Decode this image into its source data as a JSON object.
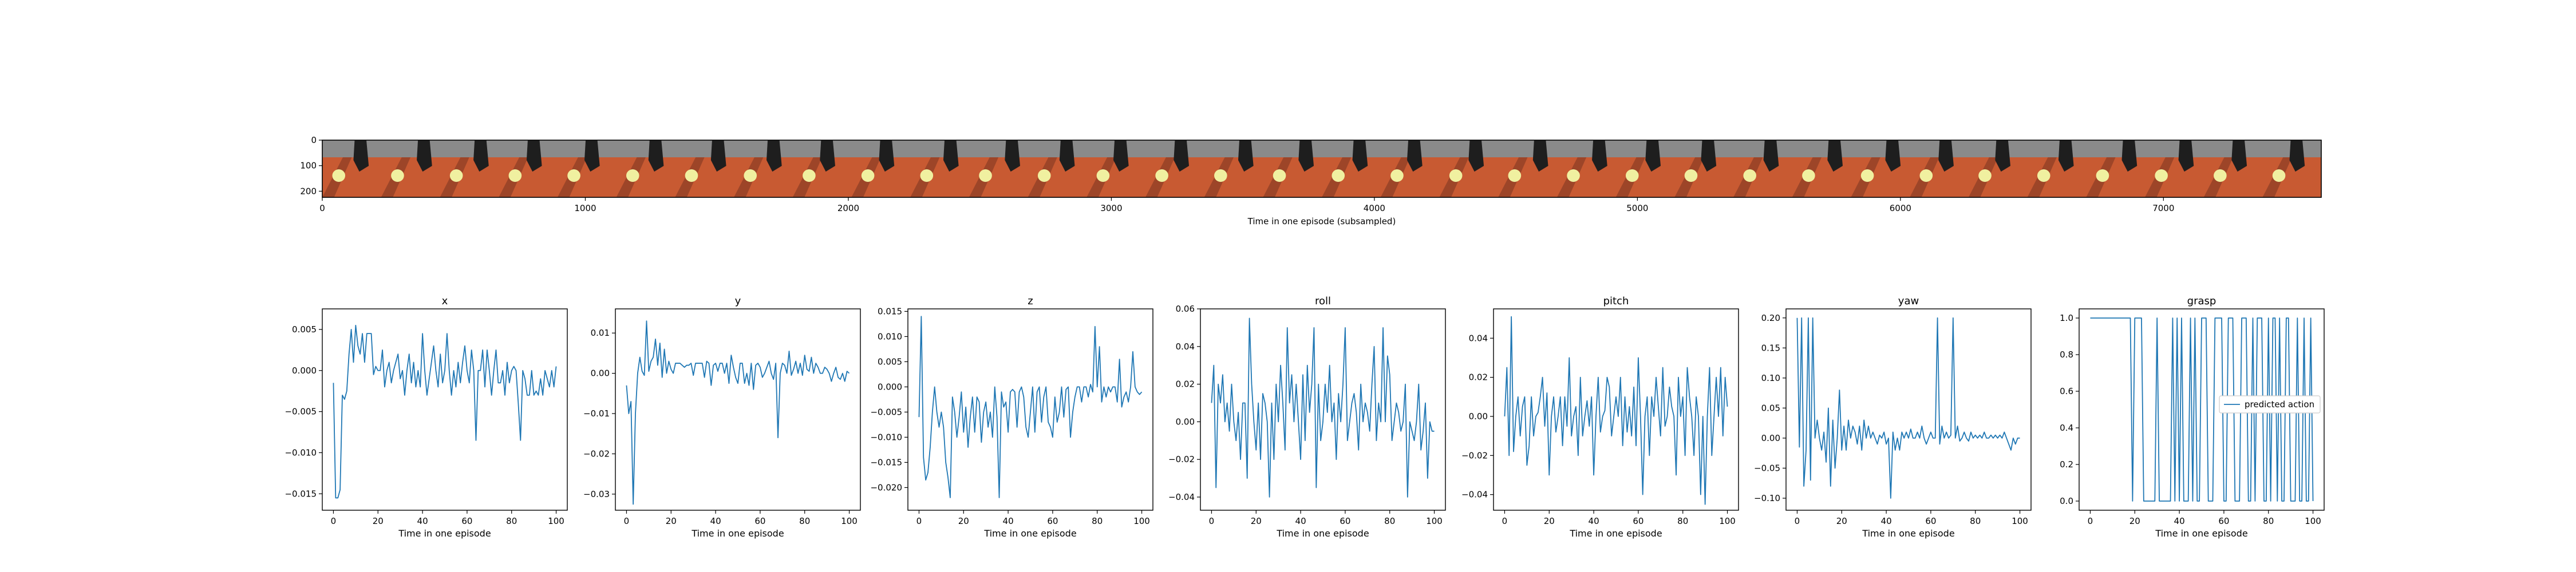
{
  "colors": {
    "series": "#1f77b4",
    "axes": "#000000",
    "background": "#ffffff"
  },
  "filmstrip": {
    "xlabel": "Time in one episode (subsampled)",
    "x_ticks": [
      "0",
      "1000",
      "2000",
      "3000",
      "4000",
      "5000",
      "6000",
      "7000"
    ],
    "x_tick_values": [
      0,
      1000,
      2000,
      3000,
      4000,
      5000,
      6000,
      7000
    ],
    "y_ticks": [
      "0",
      "100",
      "200"
    ],
    "y_tick_values": [
      0,
      100,
      200
    ],
    "xlim": [
      0,
      7600
    ],
    "ylim": [
      0,
      224
    ],
    "frames": 34,
    "frame_colors": {
      "tabletop": "#c85a32",
      "tabletop_dark": "#7a3520",
      "wall": "#8a8a8a",
      "object": "#f0f0a0",
      "gripper": "#1e1e1e"
    }
  },
  "chart_data": [
    {
      "type": "line",
      "title": "x",
      "xlabel": "Time in one episode",
      "xlim": [
        -5,
        105
      ],
      "ylim": [
        -0.017,
        0.0075
      ],
      "x_ticks": [
        "0",
        "20",
        "40",
        "60",
        "80",
        "100"
      ],
      "y_ticks": [
        "−0.015",
        "−0.010",
        "−0.005",
        "0.000",
        "0.005"
      ],
      "y_tick_values": [
        -0.015,
        -0.01,
        -0.005,
        0.0,
        0.005
      ],
      "values": [
        -0.0015,
        -0.0155,
        -0.0155,
        -0.0145,
        -0.003,
        -0.0035,
        -0.0025,
        0.002,
        0.005,
        0.001,
        0.0055,
        0.003,
        0.002,
        0.0045,
        0.001,
        0.0045,
        0.0045,
        0.0045,
        -0.0005,
        0.0005,
        0.0,
        0.0,
        0.0025,
        -0.002,
        0.0,
        0.001,
        -0.0015,
        0.0,
        0.001,
        0.002,
        -0.001,
        0.0,
        -0.003,
        0.0,
        0.002,
        -0.0015,
        0.001,
        -0.002,
        0.0,
        -0.002,
        0.0045,
        0.0,
        -0.003,
        -0.001,
        0.001,
        0.003,
        0.0,
        -0.002,
        0.002,
        -0.0015,
        0.0,
        0.0045,
        0.0,
        -0.003,
        0.0,
        -0.002,
        0.001,
        -0.0015,
        0.001,
        0.003,
        0.0,
        -0.0015,
        0.0025,
        0.0,
        -0.0085,
        0.0,
        0.0,
        0.0025,
        -0.002,
        0.0025,
        0.0,
        -0.003,
        0.0,
        0.0025,
        -0.0015,
        -0.0015,
        0.0,
        -0.003,
        0.001,
        -0.0015,
        0.0,
        0.0005,
        0.0,
        -0.004,
        -0.0085,
        0.0,
        -0.001,
        -0.003,
        -0.003,
        0.0,
        -0.003,
        -0.0025,
        -0.003,
        -0.001,
        -0.003,
        0.0,
        -0.001,
        -0.002,
        0.0,
        -0.002,
        0.0005
      ]
    },
    {
      "type": "line",
      "title": "y",
      "xlabel": "Time in one episode",
      "xlim": [
        -5,
        105
      ],
      "ylim": [
        -0.034,
        0.016
      ],
      "x_ticks": [
        "0",
        "20",
        "40",
        "60",
        "80",
        "100"
      ],
      "y_ticks": [
        "−0.03",
        "−0.02",
        "−0.01",
        "0.00",
        "0.01"
      ],
      "y_tick_values": [
        -0.03,
        -0.02,
        -0.01,
        0.0,
        0.01
      ],
      "values": [
        -0.003,
        -0.01,
        -0.007,
        -0.0325,
        -0.01,
        0.0,
        0.004,
        0.0005,
        -0.0005,
        0.013,
        0.0005,
        0.003,
        0.004,
        0.0085,
        0.002,
        0.0075,
        -0.001,
        0.006,
        0.0,
        0.003,
        0.001,
        0.0,
        0.0025,
        0.0025,
        0.0025,
        0.002,
        0.0015,
        0.002,
        0.002,
        0.0025,
        -0.0005,
        0.0025,
        0.0025,
        0.0025,
        0.0025,
        -0.001,
        0.003,
        0.0025,
        -0.003,
        0.002,
        0.0025,
        0.0005,
        0.0025,
        0.0025,
        0.0,
        0.0025,
        -0.0025,
        0.0045,
        0.0015,
        -0.001,
        -0.0025,
        0.0025,
        0.0025,
        -0.0025,
        0.0,
        -0.003,
        0.0025,
        -0.004,
        0.002,
        0.0025,
        0.0015,
        -0.001,
        0.0,
        0.0015,
        0.003,
        0.0,
        -0.0015,
        0.0025,
        -0.016,
        0.0,
        0.0025,
        0.002,
        0.0,
        0.0055,
        -0.0005,
        0.001,
        0.003,
        0.0,
        0.0025,
        -0.0005,
        0.0045,
        0.001,
        0.0005,
        0.004,
        0.0,
        0.0025,
        0.0015,
        0.0,
        0.0,
        0.0015,
        0.001,
        0.0,
        -0.002,
        0.0,
        0.0015,
        -0.001,
        -0.0015,
        0.0,
        -0.002,
        0.0005,
        0.0
      ]
    },
    {
      "type": "line",
      "title": "z",
      "xlabel": "Time in one episode",
      "xlim": [
        -5,
        105
      ],
      "ylim": [
        -0.0245,
        0.0155
      ],
      "x_ticks": [
        "0",
        "20",
        "40",
        "60",
        "80",
        "100"
      ],
      "y_ticks": [
        "−0.020",
        "−0.015",
        "−0.010",
        "−0.005",
        "0.000",
        "0.005",
        "0.010",
        "0.015"
      ],
      "y_tick_values": [
        -0.02,
        -0.015,
        -0.01,
        -0.005,
        0.0,
        0.005,
        0.01,
        0.015
      ],
      "values": [
        -0.006,
        0.014,
        -0.014,
        -0.0185,
        -0.017,
        -0.012,
        -0.005,
        0.0,
        -0.005,
        -0.008,
        -0.005,
        -0.008,
        -0.015,
        -0.018,
        -0.022,
        -0.002,
        -0.005,
        -0.01,
        -0.006,
        -0.001,
        -0.009,
        -0.004,
        -0.012,
        -0.006,
        -0.002,
        -0.009,
        -0.002,
        -0.003,
        -0.011,
        -0.005,
        -0.003,
        -0.008,
        -0.005,
        -0.01,
        0.0,
        -0.006,
        -0.022,
        -0.001,
        -0.004,
        -0.003,
        -0.009,
        -0.001,
        -0.0005,
        -0.001,
        -0.008,
        -0.001,
        0.0,
        -0.002,
        -0.008,
        -0.01,
        -0.005,
        0.0,
        -0.009,
        -0.001,
        0.0,
        -0.007,
        -0.002,
        0.0,
        -0.007,
        -0.008,
        -0.01,
        -0.002,
        -0.007,
        -0.005,
        0.0,
        -0.006,
        -0.0005,
        0.0,
        -0.01,
        -0.005,
        -0.002,
        0.0,
        0.0,
        -0.003,
        0.0,
        0.0,
        -0.002,
        0.0005,
        -0.001,
        0.012,
        0.0,
        0.008,
        -0.003,
        0.0,
        -0.002,
        0.0,
        -0.001,
        0.0,
        0.0,
        -0.003,
        0.0055,
        -0.004,
        -0.002,
        -0.001,
        -0.003,
        0.0,
        0.007,
        0.0,
        -0.001,
        -0.0015,
        -0.001
      ]
    },
    {
      "type": "line",
      "title": "roll",
      "xlabel": "Time in one episode",
      "xlim": [
        -5,
        105
      ],
      "ylim": [
        -0.047,
        0.06
      ],
      "x_ticks": [
        "0",
        "20",
        "40",
        "60",
        "80",
        "100"
      ],
      "y_ticks": [
        "−0.04",
        "−0.02",
        "0.00",
        "0.02",
        "0.04",
        "0.06"
      ],
      "y_tick_values": [
        -0.04,
        -0.02,
        0.0,
        0.02,
        0.04,
        0.06
      ],
      "values": [
        0.01,
        0.03,
        -0.035,
        0.02,
        0.01,
        0.025,
        0.0,
        0.01,
        -0.005,
        0.02,
        0.0,
        -0.01,
        0.005,
        -0.02,
        0.01,
        0.01,
        -0.03,
        0.055,
        0.02,
        0.0,
        -0.015,
        0.01,
        -0.02,
        0.015,
        0.01,
        0.0,
        -0.04,
        0.01,
        -0.02,
        0.02,
        0.0,
        0.03,
        0.01,
        -0.015,
        0.05,
        0.01,
        0.025,
        0.0,
        0.02,
        0.0,
        -0.02,
        0.025,
        -0.01,
        0.03,
        0.005,
        0.02,
        0.05,
        -0.035,
        0.02,
        -0.01,
        0.0,
        0.02,
        0.005,
        0.03,
        0.0,
        0.01,
        -0.02,
        0.015,
        0.0,
        0.02,
        0.05,
        -0.01,
        0.0,
        0.01,
        0.015,
        0.005,
        -0.015,
        0.02,
        0.0,
        0.01,
        0.005,
        -0.005,
        0.02,
        0.04,
        -0.01,
        0.01,
        0.0,
        0.05,
        0.0,
        0.035,
        0.025,
        -0.01,
        0.0,
        0.01,
        0.005,
        -0.005,
        0.0,
        0.02,
        -0.04,
        0.0,
        -0.005,
        -0.01,
        0.0,
        0.02,
        -0.015,
        -0.005,
        0.01,
        -0.03,
        0.0,
        -0.005,
        -0.005
      ]
    },
    {
      "type": "line",
      "title": "pitch",
      "xlabel": "Time in one episode",
      "xlim": [
        -5,
        105
      ],
      "ylim": [
        -0.048,
        0.055
      ],
      "x_ticks": [
        "0",
        "20",
        "40",
        "60",
        "80",
        "100"
      ],
      "y_ticks": [
        "−0.04",
        "−0.02",
        "0.00",
        "0.02",
        "0.04"
      ],
      "y_tick_values": [
        -0.04,
        -0.02,
        0.0,
        0.02,
        0.04
      ],
      "values": [
        0.0,
        0.025,
        -0.02,
        0.051,
        -0.018,
        0.0,
        0.01,
        -0.01,
        0.005,
        0.01,
        -0.025,
        -0.015,
        0.01,
        -0.01,
        0.0,
        0.002,
        0.01,
        0.02,
        -0.005,
        0.012,
        -0.03,
        0.0,
        0.01,
        -0.008,
        0.0,
        0.01,
        -0.015,
        0.01,
        -0.005,
        0.03,
        -0.01,
        0.0,
        0.005,
        -0.02,
        0.02,
        -0.01,
        0.0,
        0.008,
        -0.005,
        0.01,
        -0.03,
        0.0,
        0.02,
        -0.008,
        0.0,
        0.003,
        0.02,
        0.015,
        -0.01,
        0.0,
        0.01,
        0.0,
        0.02,
        -0.015,
        0.01,
        -0.008,
        0.005,
        -0.01,
        0.015,
        -0.015,
        0.03,
        0.0,
        -0.04,
        0.0,
        0.01,
        -0.02,
        0.01,
        0.0,
        0.02,
        0.005,
        -0.01,
        0.025,
        -0.005,
        0.0,
        0.015,
        0.005,
        0.0,
        -0.03,
        0.02,
        0.0,
        0.01,
        -0.02,
        0.025,
        0.01,
        0.0,
        -0.02,
        0.01,
        0.0,
        -0.04,
        0.0,
        -0.045,
        0.0,
        0.025,
        -0.02,
        0.0,
        0.02,
        0.0,
        0.025,
        -0.01,
        0.02,
        0.005
      ]
    },
    {
      "type": "line",
      "title": "yaw",
      "xlabel": "Time in one episode",
      "xlim": [
        -5,
        105
      ],
      "ylim": [
        -0.12,
        0.215
      ],
      "x_ticks": [
        "0",
        "20",
        "40",
        "60",
        "80",
        "100"
      ],
      "y_ticks": [
        "−0.10",
        "−0.05",
        "0.00",
        "0.05",
        "0.10",
        "0.15",
        "0.20"
      ],
      "y_tick_values": [
        -0.1,
        -0.05,
        0.0,
        0.05,
        0.1,
        0.15,
        0.2
      ],
      "values": [
        0.2,
        -0.015,
        0.2,
        -0.08,
        -0.02,
        0.2,
        -0.07,
        0.2,
        0.0,
        0.03,
        0.0,
        -0.02,
        0.01,
        -0.04,
        0.05,
        -0.08,
        0.03,
        -0.05,
        0.0,
        0.08,
        -0.02,
        0.02,
        -0.02,
        0.03,
        0.0,
        0.02,
        0.01,
        -0.01,
        0.02,
        -0.02,
        0.03,
        0.0,
        0.02,
        0.0,
        0.01,
        0.0,
        -0.01,
        0.005,
        0.0,
        0.01,
        -0.01,
        0.0,
        -0.1,
        0.01,
        -0.02,
        0.0,
        -0.02,
        0.01,
        0.0,
        0.01,
        0.0,
        0.015,
        0.0,
        0.0,
        0.01,
        0.0,
        0.02,
        0.0,
        -0.01,
        0.0,
        0.01,
        0.0,
        0.0,
        0.2,
        -0.01,
        0.02,
        0.0,
        0.01,
        0.0,
        0.005,
        0.2,
        0.0,
        0.02,
        -0.005,
        0.0,
        0.01,
        0.0,
        -0.005,
        0.01,
        0.0,
        0.005,
        0.0,
        0.005,
        0.0,
        0.01,
        0.0,
        0.0,
        0.005,
        0.0,
        0.005,
        0.0,
        0.005,
        0.0,
        0.01,
        0.0,
        -0.01,
        -0.02,
        0.0,
        -0.01,
        0.0,
        0.0
      ]
    },
    {
      "type": "line",
      "title": "grasp",
      "xlabel": "Time in one episode",
      "xlim": [
        -5,
        105
      ],
      "ylim": [
        -0.05,
        1.05
      ],
      "x_ticks": [
        "0",
        "20",
        "40",
        "60",
        "80",
        "100"
      ],
      "y_ticks": [
        "0.0",
        "0.2",
        "0.4",
        "0.6",
        "0.8",
        "1.0"
      ],
      "y_tick_values": [
        0.0,
        0.2,
        0.4,
        0.6,
        0.8,
        1.0
      ],
      "legend": {
        "label": "predicted action",
        "position": "center-right"
      },
      "series_name": "predicted action",
      "values": [
        1,
        1,
        1,
        1,
        1,
        1,
        1,
        1,
        1,
        1,
        1,
        1,
        1,
        1,
        1,
        1,
        1,
        1,
        1,
        0,
        1,
        1,
        1,
        1,
        0,
        0,
        0,
        0,
        0,
        0,
        1,
        0,
        0,
        0,
        0,
        0,
        0,
        1,
        0,
        1,
        0,
        1,
        0,
        0,
        0,
        1,
        0,
        1,
        0,
        0,
        1,
        1,
        1,
        0,
        0,
        0,
        1,
        1,
        1,
        1,
        0,
        0,
        1,
        1,
        1,
        0,
        0,
        0,
        1,
        1,
        1,
        0,
        0,
        1,
        0,
        1,
        1,
        1,
        0,
        0,
        1,
        0,
        1,
        1,
        0,
        1,
        0,
        0,
        1,
        1,
        0,
        0,
        0,
        1,
        0,
        0,
        1,
        0,
        0,
        1,
        0
      ]
    }
  ]
}
